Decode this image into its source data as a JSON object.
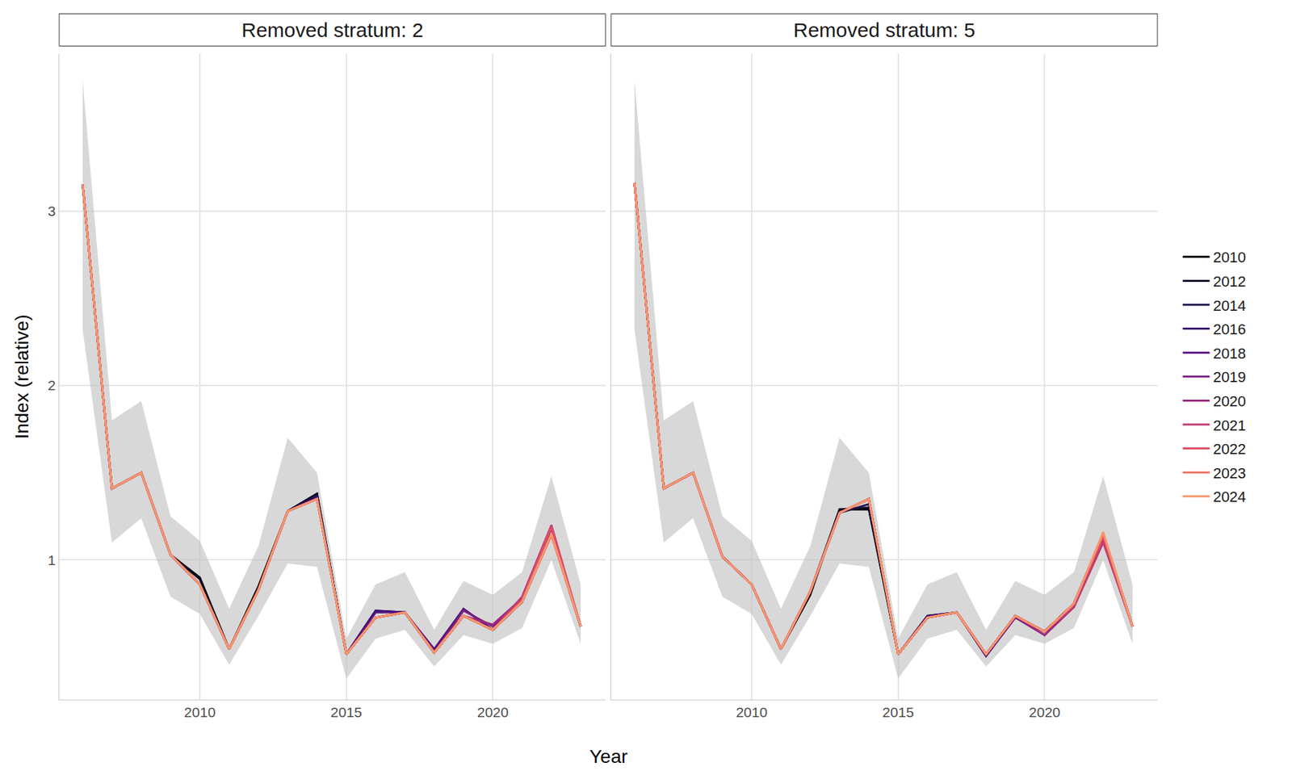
{
  "chart_data": {
    "type": "line",
    "xlabel": "Year",
    "ylabel": "Index (relative)",
    "x": [
      2006,
      2007,
      2008,
      2009,
      2010,
      2011,
      2012,
      2013,
      2014,
      2015,
      2016,
      2017,
      2018,
      2019,
      2020,
      2021,
      2022,
      2023
    ],
    "xlim": [
      2005.2,
      2023.85
    ],
    "ylim": [
      0.2,
      3.9
    ],
    "xticks": [
      2010,
      2015,
      2020
    ],
    "yticks": [
      1,
      2,
      3
    ],
    "grid": true,
    "legend": "right",
    "panels": [
      {
        "title": "Removed stratum: 2",
        "band": {
          "lower": [
            2.32,
            1.1,
            1.24,
            0.79,
            0.69,
            0.4,
            0.68,
            0.98,
            0.96,
            0.32,
            0.55,
            0.6,
            0.39,
            0.57,
            0.52,
            0.61,
            1.0,
            0.52
          ],
          "upper": [
            3.75,
            1.8,
            1.91,
            1.25,
            1.11,
            0.72,
            1.08,
            1.7,
            1.5,
            0.55,
            0.86,
            0.93,
            0.6,
            0.88,
            0.8,
            0.93,
            1.48,
            0.86
          ]
        },
        "series": [
          {
            "name": "2010",
            "color": "#000004",
            "values": [
              3.15,
              1.41,
              1.5,
              1.03,
              0.9,
              0.49,
              0.85,
              1.28,
              1.38,
              0.46,
              0.67,
              0.7,
              0.47,
              0.68,
              0.6,
              0.76,
              1.15,
              0.62
            ]
          },
          {
            "name": "2012",
            "color": "#0b0924",
            "values": [
              3.15,
              1.41,
              1.5,
              1.03,
              0.89,
              0.49,
              0.83,
              1.28,
              1.38,
              0.46,
              0.67,
              0.7,
              0.47,
              0.68,
              0.6,
              0.76,
              1.15,
              0.62
            ]
          },
          {
            "name": "2014",
            "color": "#20114b",
            "values": [
              3.15,
              1.41,
              1.5,
              1.03,
              0.86,
              0.49,
              0.83,
              1.28,
              1.37,
              0.46,
              0.71,
              0.7,
              0.47,
              0.68,
              0.6,
              0.76,
              1.15,
              0.62
            ]
          },
          {
            "name": "2016",
            "color": "#3b0f70",
            "values": [
              3.15,
              1.41,
              1.5,
              1.03,
              0.86,
              0.49,
              0.83,
              1.28,
              1.36,
              0.46,
              0.71,
              0.7,
              0.47,
              0.72,
              0.6,
              0.76,
              1.15,
              0.62
            ]
          },
          {
            "name": "2018",
            "color": "#57157e",
            "values": [
              3.15,
              1.41,
              1.5,
              1.03,
              0.86,
              0.49,
              0.83,
              1.28,
              1.35,
              0.46,
              0.7,
              0.7,
              0.49,
              0.72,
              0.6,
              0.76,
              1.15,
              0.62
            ]
          },
          {
            "name": "2019",
            "color": "#7a1f81",
            "values": [
              3.15,
              1.41,
              1.5,
              1.03,
              0.86,
              0.49,
              0.83,
              1.28,
              1.35,
              0.46,
              0.67,
              0.7,
              0.47,
              0.71,
              0.62,
              0.76,
              1.15,
              0.62
            ]
          },
          {
            "name": "2020",
            "color": "#9b2a7f",
            "values": [
              3.15,
              1.41,
              1.5,
              1.03,
              0.86,
              0.49,
              0.83,
              1.28,
              1.35,
              0.46,
              0.67,
              0.7,
              0.47,
              0.68,
              0.63,
              0.78,
              1.18,
              0.62
            ]
          },
          {
            "name": "2021",
            "color": "#c03a76",
            "values": [
              3.15,
              1.41,
              1.5,
              1.03,
              0.86,
              0.49,
              0.83,
              1.28,
              1.35,
              0.46,
              0.67,
              0.7,
              0.47,
              0.68,
              0.6,
              0.79,
              1.2,
              0.62
            ]
          },
          {
            "name": "2022",
            "color": "#e14d66",
            "values": [
              3.15,
              1.41,
              1.5,
              1.03,
              0.86,
              0.49,
              0.83,
              1.28,
              1.35,
              0.46,
              0.67,
              0.7,
              0.47,
              0.68,
              0.6,
              0.77,
              1.19,
              0.62
            ]
          },
          {
            "name": "2023",
            "color": "#f4705c",
            "values": [
              3.15,
              1.41,
              1.5,
              1.03,
              0.86,
              0.49,
              0.83,
              1.28,
              1.35,
              0.46,
              0.67,
              0.7,
              0.47,
              0.68,
              0.6,
              0.76,
              1.14,
              0.62
            ]
          },
          {
            "name": "2024",
            "color": "#f9966a",
            "values": [
              3.15,
              1.41,
              1.5,
              1.03,
              0.86,
              0.49,
              0.83,
              1.28,
              1.35,
              0.46,
              0.67,
              0.7,
              0.47,
              0.68,
              0.6,
              0.76,
              1.15,
              0.62
            ]
          }
        ]
      },
      {
        "title": "Removed stratum: 5",
        "band": {
          "lower": [
            2.32,
            1.1,
            1.24,
            0.79,
            0.69,
            0.4,
            0.68,
            0.98,
            0.96,
            0.32,
            0.55,
            0.6,
            0.39,
            0.57,
            0.52,
            0.61,
            1.0,
            0.52
          ],
          "upper": [
            3.75,
            1.8,
            1.91,
            1.25,
            1.11,
            0.72,
            1.08,
            1.7,
            1.5,
            0.55,
            0.86,
            0.93,
            0.6,
            0.88,
            0.8,
            0.93,
            1.48,
            0.86
          ]
        },
        "series": [
          {
            "name": "2010",
            "color": "#000004",
            "values": [
              3.16,
              1.41,
              1.5,
              1.02,
              0.86,
              0.49,
              0.8,
              1.29,
              1.29,
              0.46,
              0.67,
              0.7,
              0.46,
              0.68,
              0.59,
              0.75,
              1.15,
              0.62
            ]
          },
          {
            "name": "2012",
            "color": "#0b0924",
            "values": [
              3.16,
              1.41,
              1.5,
              1.02,
              0.86,
              0.49,
              0.82,
              1.29,
              1.3,
              0.46,
              0.67,
              0.7,
              0.46,
              0.68,
              0.59,
              0.75,
              1.15,
              0.62
            ]
          },
          {
            "name": "2014",
            "color": "#20114b",
            "values": [
              3.16,
              1.41,
              1.5,
              1.02,
              0.86,
              0.49,
              0.82,
              1.27,
              1.32,
              0.46,
              0.68,
              0.7,
              0.46,
              0.68,
              0.59,
              0.75,
              1.15,
              0.62
            ]
          },
          {
            "name": "2016",
            "color": "#3b0f70",
            "values": [
              3.16,
              1.41,
              1.5,
              1.02,
              0.86,
              0.49,
              0.82,
              1.27,
              1.35,
              0.46,
              0.68,
              0.7,
              0.45,
              0.68,
              0.59,
              0.75,
              1.15,
              0.62
            ]
          },
          {
            "name": "2018",
            "color": "#57157e",
            "values": [
              3.16,
              1.41,
              1.5,
              1.02,
              0.86,
              0.49,
              0.82,
              1.27,
              1.35,
              0.46,
              0.67,
              0.7,
              0.45,
              0.67,
              0.59,
              0.75,
              1.15,
              0.62
            ]
          },
          {
            "name": "2019",
            "color": "#7a1f81",
            "values": [
              3.16,
              1.41,
              1.5,
              1.02,
              0.86,
              0.49,
              0.82,
              1.27,
              1.35,
              0.46,
              0.67,
              0.7,
              0.46,
              0.67,
              0.57,
              0.75,
              1.15,
              0.62
            ]
          },
          {
            "name": "2020",
            "color": "#9b2a7f",
            "values": [
              3.16,
              1.41,
              1.5,
              1.02,
              0.86,
              0.49,
              0.82,
              1.27,
              1.35,
              0.46,
              0.67,
              0.7,
              0.46,
              0.68,
              0.57,
              0.73,
              1.11,
              0.62
            ]
          },
          {
            "name": "2021",
            "color": "#c03a76",
            "values": [
              3.16,
              1.41,
              1.5,
              1.02,
              0.86,
              0.49,
              0.82,
              1.27,
              1.35,
              0.46,
              0.67,
              0.7,
              0.46,
              0.68,
              0.59,
              0.73,
              1.1,
              0.62
            ]
          },
          {
            "name": "2022",
            "color": "#e14d66",
            "values": [
              3.16,
              1.41,
              1.5,
              1.02,
              0.86,
              0.49,
              0.82,
              1.27,
              1.35,
              0.46,
              0.67,
              0.7,
              0.46,
              0.68,
              0.59,
              0.75,
              1.13,
              0.62
            ]
          },
          {
            "name": "2023",
            "color": "#f4705c",
            "values": [
              3.16,
              1.41,
              1.5,
              1.02,
              0.86,
              0.49,
              0.82,
              1.27,
              1.35,
              0.46,
              0.67,
              0.7,
              0.46,
              0.68,
              0.59,
              0.75,
              1.15,
              0.62
            ]
          },
          {
            "name": "2024",
            "color": "#f9966a",
            "values": [
              3.16,
              1.41,
              1.5,
              1.02,
              0.86,
              0.49,
              0.82,
              1.27,
              1.35,
              0.46,
              0.67,
              0.7,
              0.46,
              0.68,
              0.59,
              0.75,
              1.16,
              0.62
            ]
          }
        ]
      }
    ]
  }
}
